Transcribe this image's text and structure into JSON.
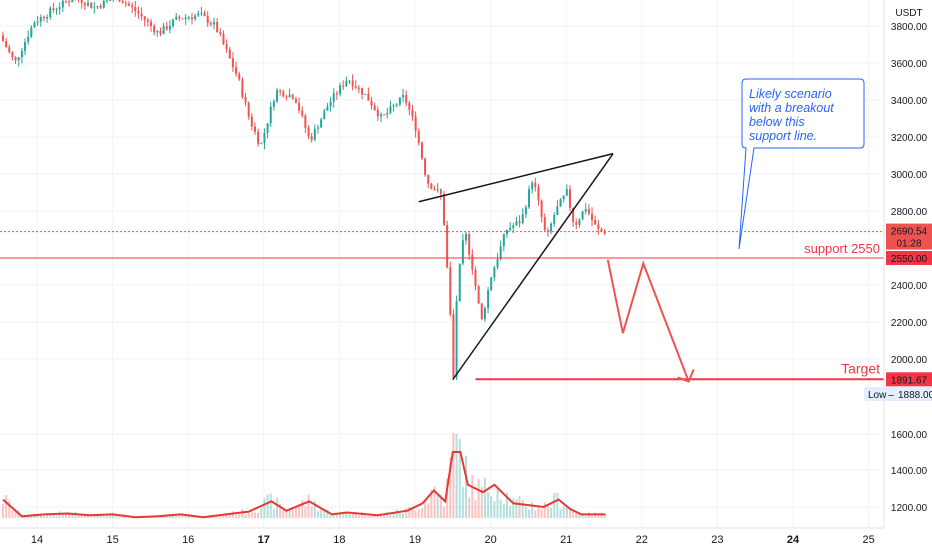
{
  "chart_data": {
    "type": "candlestick",
    "currency": "USDT",
    "y_axis": {
      "ticks": [
        3800,
        3600,
        3400,
        3200,
        3000,
        2800,
        2400,
        2200,
        2000,
        1600,
        1400,
        1200
      ],
      "tick_labels": [
        "3800.00",
        "3600.00",
        "3400.00",
        "3200.00",
        "3000.00",
        "2800.00",
        "2400.00",
        "2200.00",
        "2000.00",
        "1600.00",
        "1400.00",
        "1200.00"
      ],
      "range": [
        1140,
        3930
      ]
    },
    "x_axis": {
      "ticks": [
        14,
        15,
        16,
        17,
        18,
        19,
        20,
        21,
        22,
        23,
        24,
        25
      ],
      "tick_labels": [
        "14",
        "15",
        "16",
        "17",
        "18",
        "19",
        "20",
        "21",
        "22",
        "23",
        "24",
        "25"
      ],
      "bold_ticks": [
        "17",
        "24"
      ],
      "range": [
        13.55,
        25.3
      ]
    },
    "price_path": [
      [
        13.55,
        3750
      ],
      [
        13.75,
        3600
      ],
      [
        14.0,
        3820
      ],
      [
        14.3,
        3900
      ],
      [
        14.55,
        3960
      ],
      [
        14.8,
        3900
      ],
      [
        15.1,
        3960
      ],
      [
        15.35,
        3880
      ],
      [
        15.65,
        3760
      ],
      [
        15.9,
        3840
      ],
      [
        16.2,
        3860
      ],
      [
        16.4,
        3800
      ],
      [
        16.7,
        3520
      ],
      [
        16.85,
        3300
      ],
      [
        17.0,
        3150
      ],
      [
        17.2,
        3450
      ],
      [
        17.45,
        3420
      ],
      [
        17.65,
        3180
      ],
      [
        17.9,
        3380
      ],
      [
        18.15,
        3520
      ],
      [
        18.4,
        3420
      ],
      [
        18.6,
        3300
      ],
      [
        18.9,
        3420
      ],
      [
        19.05,
        3250
      ],
      [
        19.2,
        2960
      ],
      [
        19.4,
        2880
      ],
      [
        19.5,
        2300
      ],
      [
        19.55,
        1900
      ],
      [
        19.6,
        2400
      ],
      [
        19.7,
        2700
      ],
      [
        19.8,
        2500
      ],
      [
        19.92,
        2200
      ],
      [
        20.05,
        2450
      ],
      [
        20.25,
        2700
      ],
      [
        20.45,
        2750
      ],
      [
        20.6,
        2980
      ],
      [
        20.78,
        2650
      ],
      [
        20.9,
        2800
      ],
      [
        21.05,
        2900
      ],
      [
        21.15,
        2720
      ],
      [
        21.3,
        2820
      ],
      [
        21.45,
        2700
      ],
      [
        21.52,
        2690
      ]
    ],
    "volume_path": [
      [
        13.55,
        1240
      ],
      [
        13.8,
        1150
      ],
      [
        14.1,
        1160
      ],
      [
        14.4,
        1165
      ],
      [
        14.7,
        1155
      ],
      [
        15.0,
        1160
      ],
      [
        15.3,
        1145
      ],
      [
        15.6,
        1150
      ],
      [
        15.9,
        1160
      ],
      [
        16.2,
        1145
      ],
      [
        16.5,
        1160
      ],
      [
        16.8,
        1175
      ],
      [
        17.1,
        1230
      ],
      [
        17.3,
        1180
      ],
      [
        17.6,
        1230
      ],
      [
        17.9,
        1160
      ],
      [
        18.1,
        1170
      ],
      [
        18.5,
        1155
      ],
      [
        18.9,
        1180
      ],
      [
        19.1,
        1220
      ],
      [
        19.25,
        1290
      ],
      [
        19.4,
        1230
      ],
      [
        19.5,
        1500
      ],
      [
        19.6,
        1500
      ],
      [
        19.7,
        1320
      ],
      [
        19.9,
        1280
      ],
      [
        20.05,
        1320
      ],
      [
        20.3,
        1220
      ],
      [
        20.5,
        1210
      ],
      [
        20.7,
        1200
      ],
      [
        20.9,
        1240
      ],
      [
        21.05,
        1190
      ],
      [
        21.2,
        1160
      ],
      [
        21.52,
        1160
      ]
    ],
    "current_price": {
      "label": "2690.54",
      "countdown": "01:28"
    },
    "levels": [
      {
        "label": "support 2550",
        "price_label": "2550.00",
        "color": "#f23645"
      },
      {
        "label": "Target",
        "price_label": "1891.67",
        "color": "#f23645"
      }
    ],
    "low_marker": {
      "prefix": "Low",
      "value": "1888.00"
    },
    "annotation": "Likely scenario with a breakout below this support line.",
    "trendlines": [
      {
        "from": [
          19.05,
          2850
        ],
        "to": [
          21.62,
          3110
        ],
        "color": "#131722"
      },
      {
        "from": [
          19.5,
          1890
        ],
        "to": [
          21.62,
          3110
        ],
        "color": "#131722"
      }
    ],
    "projection_path": [
      [
        21.55,
        2540
      ],
      [
        21.75,
        2140
      ],
      [
        22.02,
        2520
      ],
      [
        22.62,
        1880
      ]
    ],
    "colors": {
      "up": "#26a69a",
      "down": "#ef5350",
      "level": "#f23645",
      "volume_ma": "#e53935",
      "annotation": "#2962ff"
    }
  }
}
